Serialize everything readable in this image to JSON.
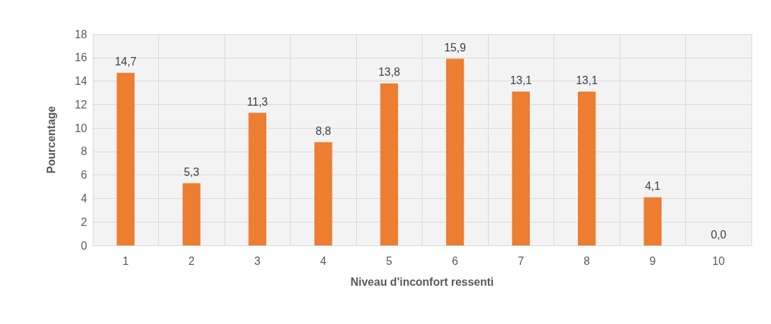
{
  "chart_data": {
    "type": "bar",
    "xlabel": "Niveau d'inconfort ressenti",
    "ylabel": "Pourcentage",
    "categories": [
      "1",
      "2",
      "3",
      "4",
      "5",
      "6",
      "7",
      "8",
      "9",
      "10"
    ],
    "values": [
      14.7,
      5.3,
      11.3,
      8.8,
      13.8,
      15.9,
      13.1,
      13.1,
      4.1,
      0.0
    ],
    "value_labels": [
      "14,7",
      "5,3",
      "11,3",
      "8,8",
      "13,8",
      "15,9",
      "13,1",
      "13,1",
      "4,1",
      "0,0"
    ],
    "color": "#ed7d31",
    "ylim": [
      0,
      18
    ],
    "yticks": [
      0,
      2,
      4,
      6,
      8,
      10,
      12,
      14,
      16,
      18
    ],
    "grid": true
  }
}
